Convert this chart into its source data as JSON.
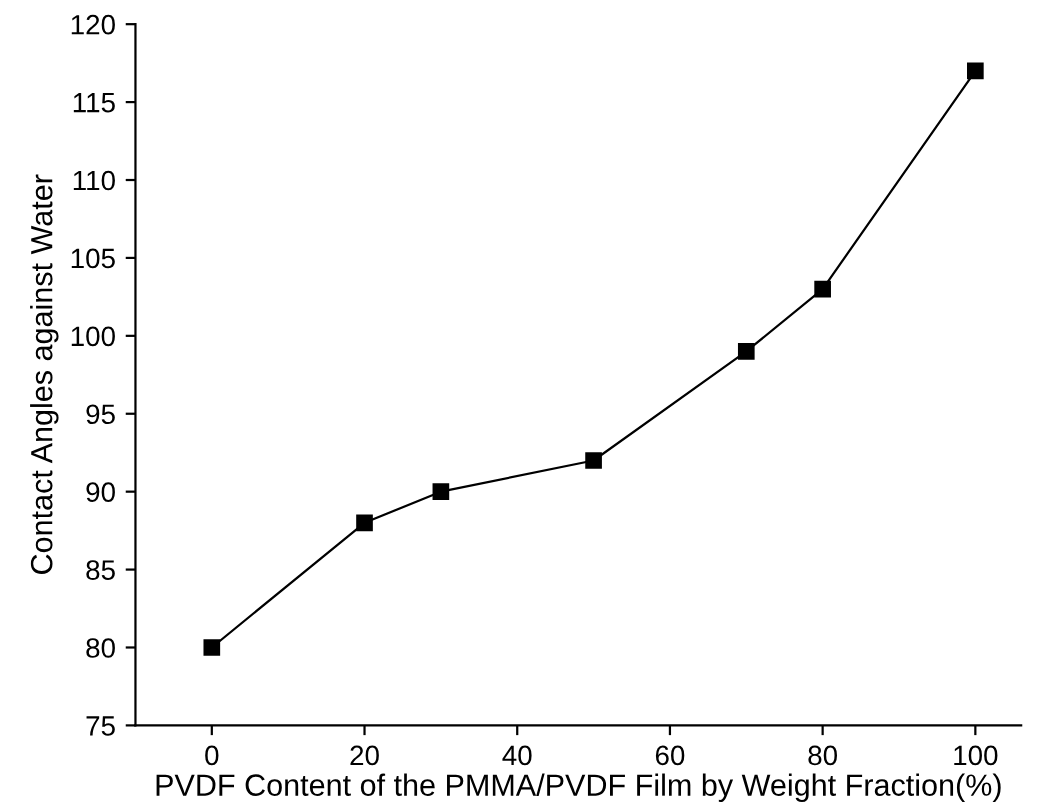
{
  "chart_data": {
    "type": "line",
    "xlabel": "PVDF Content of the PMMA/PVDF Film by Weight Fraction(%)",
    "ylabel": "Contact Angles against Water",
    "x": [
      0,
      20,
      30,
      50,
      70,
      80,
      100
    ],
    "series": [
      {
        "color": "#000000",
        "values": [
          80,
          88,
          90,
          92,
          99,
          103,
          117
        ]
      }
    ],
    "xlim": [
      -10,
      106
    ],
    "xticks": [
      0,
      20,
      40,
      60,
      80,
      100
    ],
    "ylim": [
      75,
      120
    ],
    "yticks": [
      75,
      80,
      85,
      90,
      95,
      100,
      105,
      110,
      115,
      120
    ],
    "marker": "square",
    "line_style": "solid",
    "grid": false,
    "legend": false
  }
}
